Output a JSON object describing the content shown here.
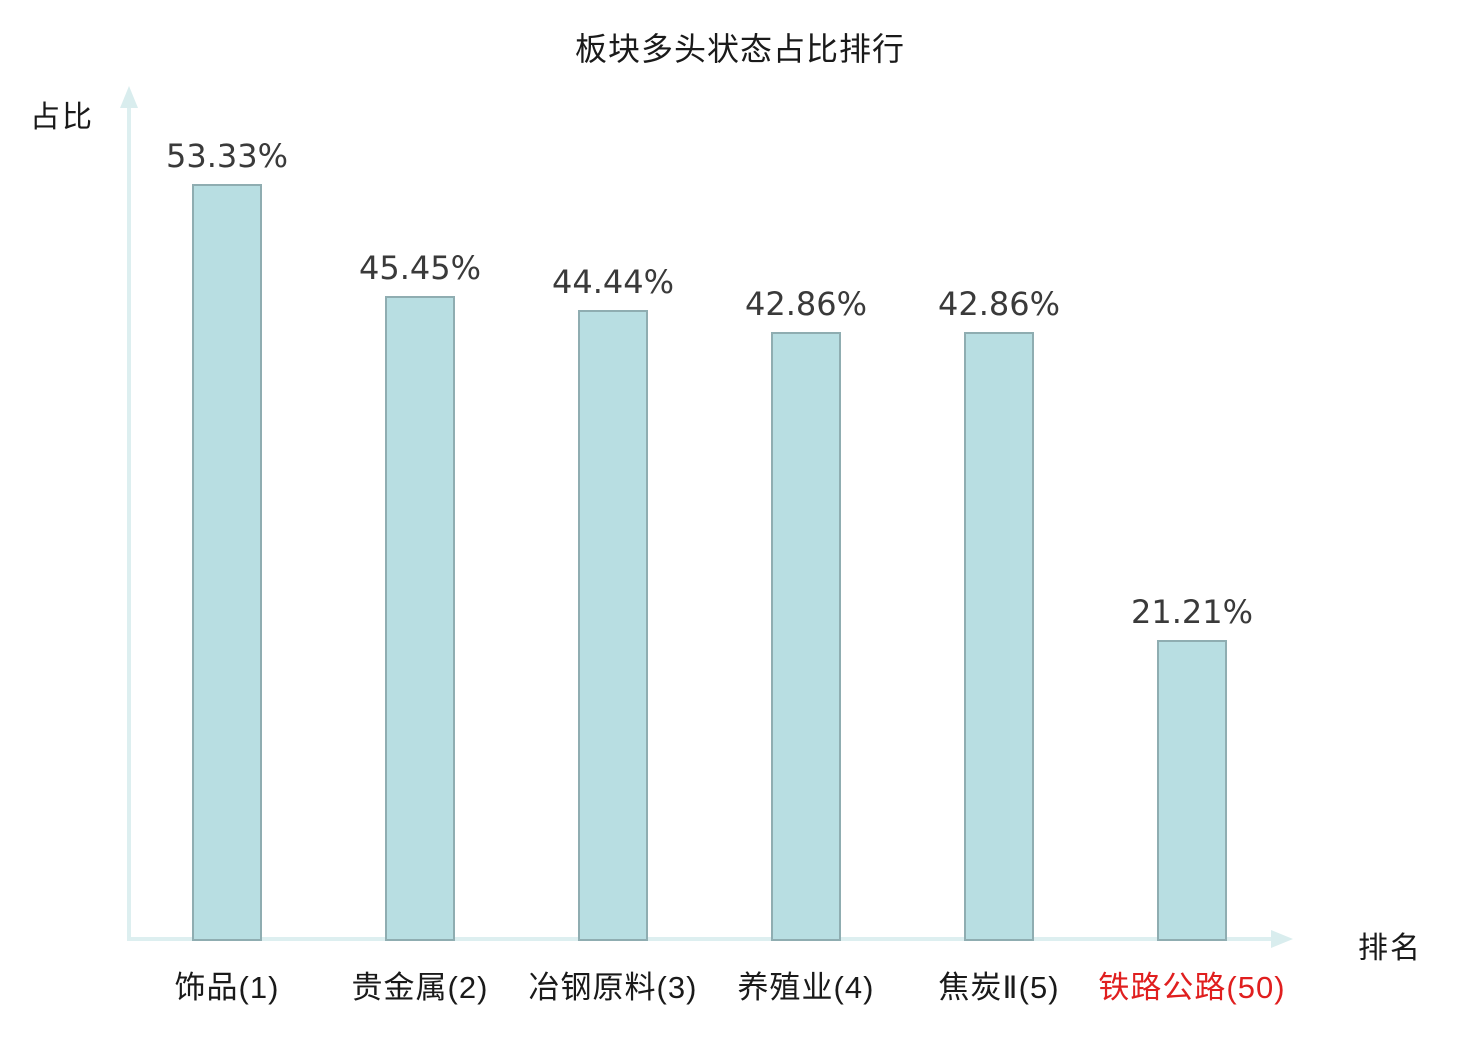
{
  "title": "板块多头状态占比排行",
  "axes": {
    "y_label": "占比",
    "x_label": "排名",
    "ticks_visible": false,
    "grid_visible": false
  },
  "colors": {
    "bar_fill": "#b8dee2",
    "bar_border": "#8fadb1",
    "axis": "#ddeff0",
    "title_text": "#1a1a1a",
    "value_text": "#3a3a3a",
    "category_text": "#1a1a1a",
    "highlight_text": "#e01f1f"
  },
  "chart_data": {
    "type": "bar",
    "title": "板块多头状态占比排行",
    "xlabel": "排名",
    "ylabel": "占比",
    "categories": [
      "饰品(1)",
      "贵金属(2)",
      "冶钢原料(3)",
      "养殖业(4)",
      "焦炭Ⅱ(5)",
      "铁路公路(50)"
    ],
    "values": [
      53.33,
      45.45,
      44.44,
      42.86,
      42.86,
      21.21
    ],
    "value_labels": [
      "53.33%",
      "45.45%",
      "44.44%",
      "42.86%",
      "42.86%",
      "21.21%"
    ],
    "highlighted_category_index": 5,
    "legend": false,
    "grid": false,
    "ylim": [
      0,
      60
    ]
  }
}
